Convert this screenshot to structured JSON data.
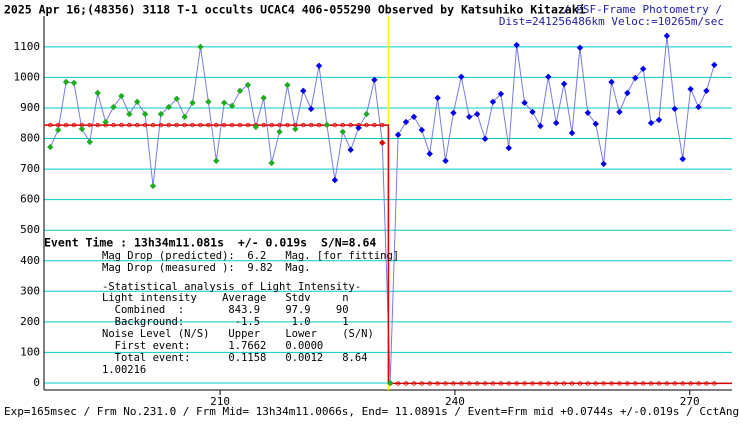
{
  "chart_data": {
    "type": "line",
    "title": "2025 Apr 16;(48356) 3118 T-1 occults UCAC4 406-055290 Observed by Katsuhiko Kitazaki",
    "subtitle": "/ PSF-Frame Photometry /",
    "subtitle2": "Dist=241256486km Veloc:=10265m/sec",
    "footer": "Exp=165msec / Frm No.231.0 / Frm Mid= 13h34m11.0066s, End= 11.0891s / Event=Frm mid +0.0744s +/-0.019s / CctAngle=0.0deg",
    "event_text": "Event Time : 13h34m11.081s  +/- 0.019s  S/N=8.64",
    "stats_lines": [
      "Mag Drop (predicted):  6.2   Mag. [for fitting]",
      "Mag Drop (measured ):  9.82  Mag.",
      "-Statistical analysis of Light Intensity-",
      "Light intensity    Average   Stdv     n",
      "  Combined  :       843.9    97.9    90",
      "  Background:        -1.5     1.0     1",
      "Noise Level (N/S)   Upper    Lower    (S/N)",
      "  First event:      1.7662   0.0000",
      "  Total event:      0.1158   0.0012   8.64",
      "1.00216"
    ],
    "x": [
      188.3,
      189.31,
      190.32,
      191.33,
      192.34,
      193.35,
      194.36,
      195.37,
      196.38,
      197.39,
      198.4,
      199.41,
      200.42,
      201.43,
      202.44,
      203.45,
      204.46,
      205.47,
      206.48,
      207.49,
      208.5,
      209.51,
      210.52,
      211.53,
      212.54,
      213.55,
      214.56,
      215.57,
      216.58,
      217.59,
      218.6,
      219.61,
      220.62,
      221.63,
      222.64,
      223.65,
      224.66,
      225.67,
      226.68,
      227.69,
      228.7,
      229.71,
      230.72,
      231.73,
      232.74,
      233.75,
      234.76,
      235.77,
      236.78,
      237.79,
      238.8,
      239.81,
      240.82,
      241.83,
      242.84,
      243.85,
      244.86,
      245.87,
      246.88,
      247.89,
      248.9,
      249.91,
      250.92,
      251.93,
      252.94,
      253.95,
      254.96,
      255.97,
      256.98,
      257.99,
      259.0,
      260.01,
      261.02,
      262.03,
      263.04,
      264.05,
      265.06,
      266.07,
      267.08,
      268.09,
      269.1,
      270.11,
      271.12,
      272.13,
      273.14
    ],
    "series": [
      {
        "color": "#7a7ae6",
        "values": [
          772,
          828,
          985,
          982,
          831,
          789,
          949,
          854,
          903,
          939,
          880,
          920,
          880,
          645,
          880,
          903,
          930,
          871,
          917,
          1100,
          920,
          727,
          917,
          907,
          956,
          975,
          838,
          933,
          720,
          822,
          975,
          831,
          956,
          897,
          1038,
          845,
          664,
          822,
          763,
          835,
          880,
          992,
          786,
          0,
          812,
          854,
          871,
          828,
          750,
          933,
          727,
          884,
          1002,
          871,
          880,
          799,
          920,
          946,
          769,
          1106,
          917,
          887,
          841,
          1002,
          851,
          979,
          818,
          1097,
          884,
          848,
          717,
          985,
          887,
          949,
          998,
          1028,
          851,
          861,
          1136,
          897,
          733,
          962,
          903,
          956,
          1041
        ],
        "marker_colors": [
          "#22aa22",
          "#22aa22",
          "#22aa22",
          "#22aa22",
          "#22aa22",
          "#22aa22",
          "#22aa22",
          "#22aa22",
          "#22aa22",
          "#22aa22",
          "#22aa22",
          "#22aa22",
          "#22aa22",
          "#22aa22",
          "#22aa22",
          "#22aa22",
          "#22aa22",
          "#22aa22",
          "#22aa22",
          "#22aa22",
          "#22aa22",
          "#22aa22",
          "#22aa22",
          "#22aa22",
          "#22aa22",
          "#22aa22",
          "#22aa22",
          "#22aa22",
          "#22aa22",
          "#22aa22",
          "#22aa22",
          "#22aa22",
          "#0000ee",
          "#0000ee",
          "#0000ee",
          "#22aa22",
          "#0000ee",
          "#22aa22",
          "#0000ee",
          "#0000ee",
          "#22aa22",
          "#0000ee",
          "#dd0000",
          "#22aa22",
          "#0000ee",
          "#0000ee",
          "#0000ee",
          "#0000ee",
          "#0000ee",
          "#0000ee",
          "#0000ee",
          "#0000ee",
          "#0000ee",
          "#0000ee",
          "#0000ee",
          "#0000ee",
          "#0000ee",
          "#0000ee",
          "#0000ee",
          "#0000ee",
          "#0000ee",
          "#0000ee",
          "#0000ee",
          "#0000ee",
          "#0000ee",
          "#0000ee",
          "#0000ee",
          "#0000ee",
          "#0000ee",
          "#0000ee",
          "#0000ee",
          "#0000ee",
          "#0000ee",
          "#0000ee",
          "#0000ee",
          "#0000ee",
          "#0000ee",
          "#0000ee",
          "#0000ee",
          "#0000ee",
          "#0000ee",
          "#0000ee",
          "#0000ee",
          "#0000ee",
          "#0000ee"
        ]
      }
    ],
    "fit": {
      "level": 843.9,
      "background": -1.5,
      "event_x": 231.5,
      "color": "#dd0000"
    },
    "event_line_color": "#ffff00",
    "grid_color": "#00cccc",
    "xlim": [
      187.5,
      275.4
    ],
    "ylim": [
      -23,
      1201
    ],
    "xticks": [
      210,
      240,
      270
    ],
    "yticks": [
      0,
      100,
      200,
      300,
      400,
      500,
      600,
      700,
      800,
      900,
      1000,
      1100
    ],
    "grid": true
  }
}
